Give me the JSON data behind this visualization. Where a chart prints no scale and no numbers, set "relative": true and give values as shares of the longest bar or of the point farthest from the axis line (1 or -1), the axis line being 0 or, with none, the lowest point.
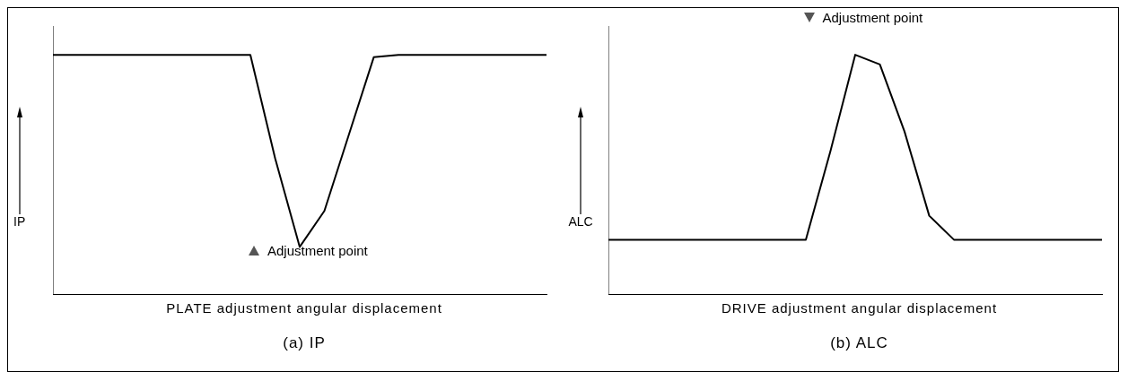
{
  "chart_data": [
    {
      "type": "line",
      "title": "(a) IP",
      "xlabel": "PLATE adjustment angular displacement",
      "ylabel": "IP",
      "annotations": [
        "Adjustment point"
      ],
      "relative": true,
      "categories": [
        null,
        null,
        null,
        null,
        null,
        null,
        null,
        null,
        null,
        null,
        null,
        null,
        null,
        null,
        null,
        null,
        null,
        null,
        null,
        null,
        null
      ],
      "series": [
        {
          "color": "#000000",
          "values": [
            1,
            1,
            1,
            1,
            1,
            1,
            1,
            1,
            1,
            0.57,
            0.2,
            0.35,
            0.67,
            0.99,
            1,
            1,
            1,
            1,
            1,
            1,
            1
          ]
        }
      ]
    },
    {
      "type": "line",
      "title": "(b) ALC",
      "xlabel": "DRIVE adjustment angular displacement",
      "ylabel": "ALC",
      "annotations": [
        "Adjustment point"
      ],
      "relative": true,
      "categories": [
        null,
        null,
        null,
        null,
        null,
        null,
        null,
        null,
        null,
        null,
        null,
        null,
        null,
        null,
        null,
        null,
        null,
        null,
        null,
        null,
        null
      ],
      "series": [
        {
          "color": "#000000",
          "values": [
            0.23,
            0.23,
            0.23,
            0.23,
            0.23,
            0.23,
            0.23,
            0.23,
            0.23,
            0.6,
            1,
            0.96,
            0.68,
            0.33,
            0.23,
            0.23,
            0.23,
            0.23,
            0.23,
            0.23,
            0.23
          ]
        }
      ]
    }
  ]
}
